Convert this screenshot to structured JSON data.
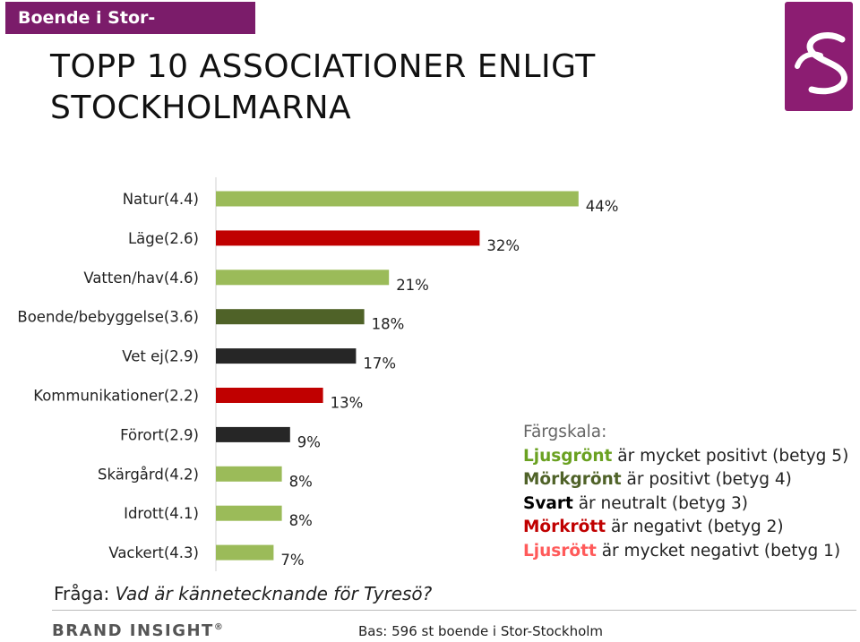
{
  "header": {
    "tag": "Boende i Stor-Stockholm"
  },
  "title": {
    "line1": "TOPP 10 ASSOCIATIONER ENLIGT",
    "line2": "STOCKHOLMARNA"
  },
  "colors": {
    "light_green": "#9bbb59",
    "dark_green": "#4f6228",
    "black": "#262626",
    "dark_red": "#c00000",
    "light_red": "#ff5a5a",
    "brand_purple": "#7b1c6a"
  },
  "chart_data": {
    "type": "bar",
    "orientation": "horizontal",
    "categories": [
      "Natur(4.4)",
      "Läge(2.6)",
      "Vatten/hav(4.6)",
      "Boende/bebyggelse(3.6)",
      "Vet ej(2.9)",
      "Kommunikationer(2.2)",
      "Förort(2.9)",
      "Skärgård(4.2)",
      "Idrott(4.1)",
      "Vackert(4.3)"
    ],
    "values": [
      44,
      32,
      21,
      18,
      17,
      13,
      9,
      8,
      8,
      7
    ],
    "value_labels": [
      "44%",
      "32%",
      "21%",
      "18%",
      "17%",
      "13%",
      "9%",
      "8%",
      "8%",
      "7%"
    ],
    "bar_colors": [
      "#9bbb59",
      "#c00000",
      "#9bbb59",
      "#4f6228",
      "#262626",
      "#c00000",
      "#262626",
      "#9bbb59",
      "#9bbb59",
      "#9bbb59"
    ],
    "unit": "%",
    "xlim": [
      0,
      50
    ],
    "grid": false,
    "legend": "none"
  },
  "legend": {
    "heading": "Färgskala:",
    "items": [
      {
        "key": "Ljusgrönt",
        "rest": " är mycket positivt (betyg 5)",
        "color": "#6aa121"
      },
      {
        "key": "Mörkgrönt",
        "rest": " är positivt (betyg 4)",
        "color": "#4f6228"
      },
      {
        "key": "Svart",
        "rest": " är neutralt (betyg 3)",
        "color": "#000000"
      },
      {
        "key": "Mörkrött",
        "rest": " är negativt (betyg 2)",
        "color": "#c00000"
      },
      {
        "key": "Ljusrött",
        "rest": " är mycket negativt (betyg 1)",
        "color": "#ff5a5a"
      }
    ]
  },
  "footer": {
    "question_label": "Fråga:",
    "question_text": "Vad är kännetecknande för Tyresö?",
    "brand": "BRAND INSIGHT",
    "brand_mark": "®",
    "base": "Bas: 596 st boende i Stor-Stockholm"
  },
  "logo": {
    "icon": "brand-insight-swirl-icon"
  }
}
